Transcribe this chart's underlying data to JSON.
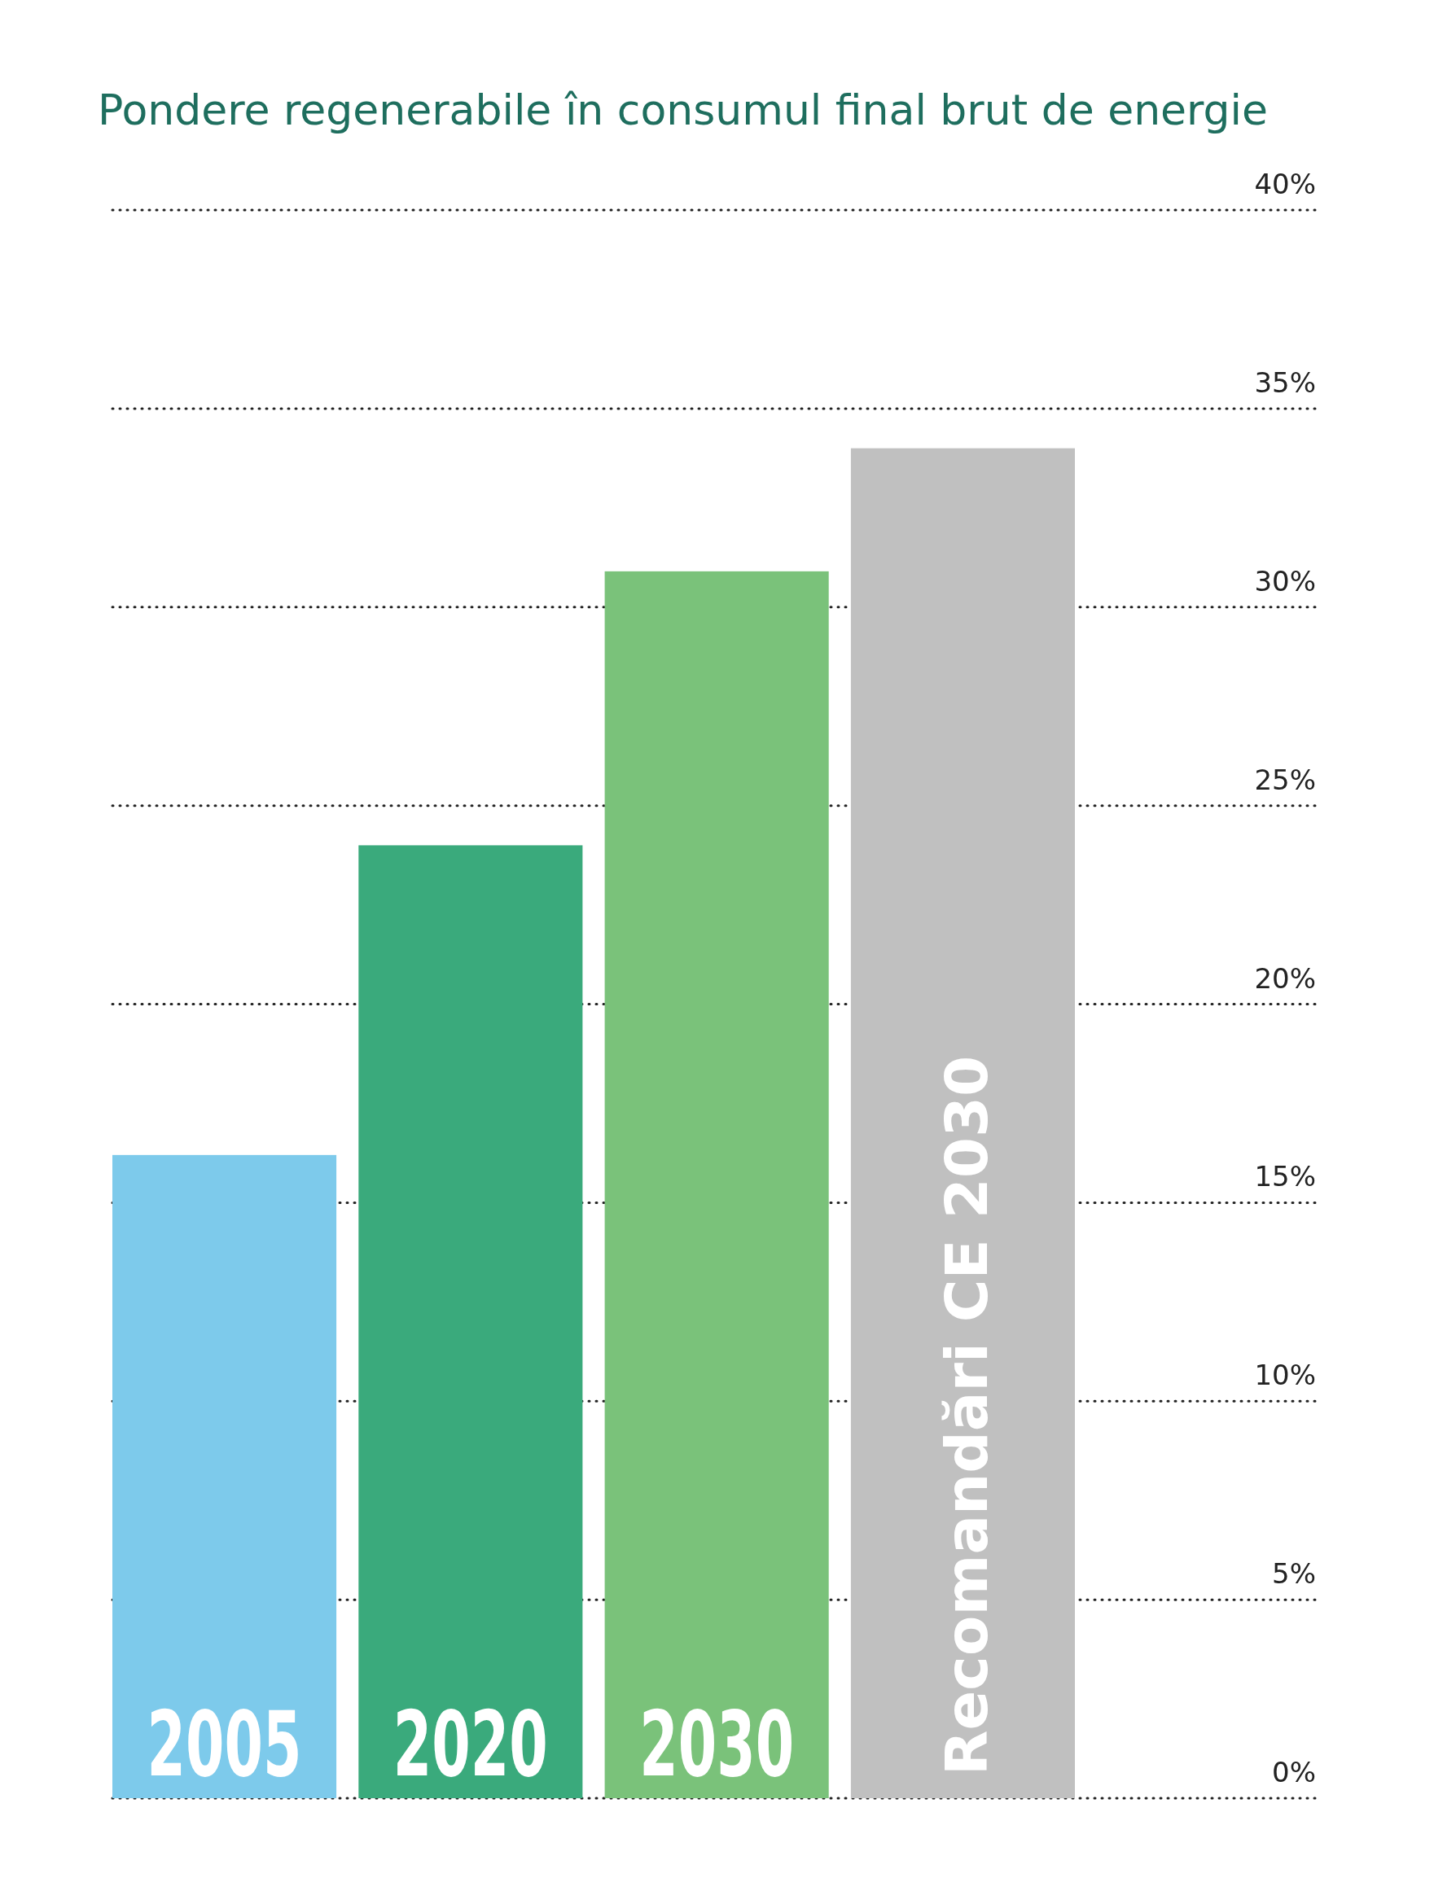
{
  "chart_data": {
    "type": "bar",
    "title": "Pondere regenerabile în consumul final brut de energie",
    "categories": [
      "2005",
      "2020",
      "2030",
      "Recomandări CE 2030"
    ],
    "values": [
      16.2,
      24,
      30.9,
      34
    ],
    "colors": [
      "#7dcaeb",
      "#3aaa7c",
      "#7ac27a",
      "#c0c0c0"
    ],
    "ylim": [
      0,
      40
    ],
    "yticks": [
      {
        "value": 0,
        "label": "0%"
      },
      {
        "value": 5,
        "label": "5%"
      },
      {
        "value": 10,
        "label": "10%"
      },
      {
        "value": 15,
        "label": "15%"
      },
      {
        "value": 20,
        "label": "20%"
      },
      {
        "value": 25,
        "label": "25%"
      },
      {
        "value": 30,
        "label": "30%"
      },
      {
        "value": 35,
        "label": "35%"
      },
      {
        "value": 40,
        "label": "40%"
      }
    ],
    "grid": "y"
  }
}
